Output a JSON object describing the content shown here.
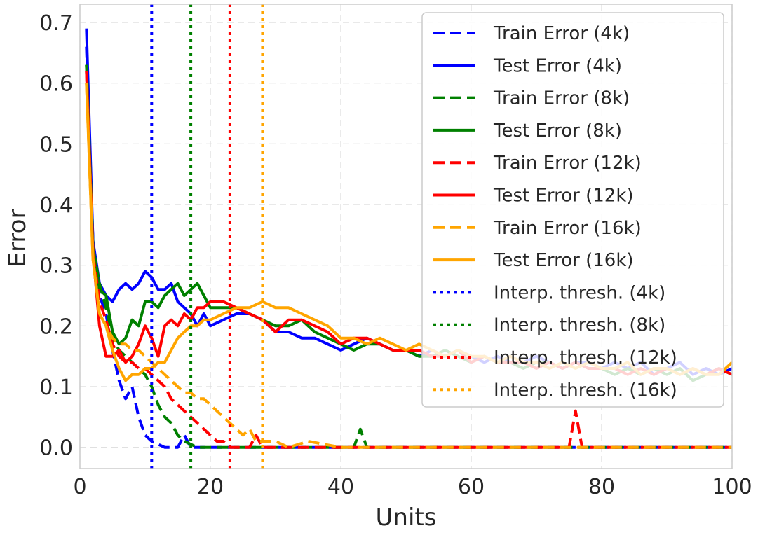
{
  "chart_data": {
    "type": "line",
    "xlabel": "Units",
    "ylabel": "Error",
    "xlim": [
      0,
      100
    ],
    "ylim": [
      -0.035,
      0.73
    ],
    "xticks": [
      "0",
      "20",
      "40",
      "60",
      "80",
      "100"
    ],
    "yticks": [
      "0.0",
      "0.1",
      "0.2",
      "0.3",
      "0.4",
      "0.5",
      "0.6",
      "0.7"
    ],
    "grid": true,
    "legend_position": "upper-right",
    "colors": {
      "4k": "#0000ff",
      "8k": "#008000",
      "12k": "#ff0000",
      "16k": "#ffa500"
    },
    "series": [
      {
        "name": "Train Error (4k)",
        "color": "#0000ff",
        "style": "dashed",
        "x": [
          1,
          2,
          3,
          4,
          5,
          6,
          7,
          8,
          9,
          10,
          11,
          12,
          13,
          14,
          15,
          16,
          17,
          18,
          19,
          20,
          25,
          30,
          40,
          50,
          60,
          70,
          80,
          90,
          100
        ],
        "y": [
          0.66,
          0.34,
          0.25,
          0.22,
          0.16,
          0.11,
          0.08,
          0.1,
          0.05,
          0.02,
          0.01,
          0.005,
          0.0,
          0.0,
          0.0,
          0.02,
          0.0,
          0.0,
          0.0,
          0.0,
          0.0,
          0.0,
          0.0,
          0.0,
          0.0,
          0.0,
          0.0,
          0.0,
          0.0
        ]
      },
      {
        "name": "Test Error (4k)",
        "color": "#0000ff",
        "style": "solid",
        "x": [
          1,
          2,
          3,
          4,
          5,
          6,
          7,
          8,
          9,
          10,
          11,
          12,
          13,
          14,
          15,
          16,
          17,
          18,
          19,
          20,
          22,
          24,
          26,
          28,
          30,
          32,
          34,
          36,
          38,
          40,
          42,
          44,
          46,
          48,
          50,
          52,
          54,
          56,
          58,
          60,
          62,
          64,
          66,
          68,
          70,
          72,
          74,
          76,
          78,
          80,
          82,
          84,
          86,
          88,
          90,
          92,
          94,
          96,
          98,
          100
        ],
        "y": [
          0.69,
          0.34,
          0.27,
          0.25,
          0.24,
          0.26,
          0.27,
          0.26,
          0.27,
          0.29,
          0.28,
          0.26,
          0.26,
          0.27,
          0.24,
          0.23,
          0.22,
          0.2,
          0.22,
          0.2,
          0.21,
          0.22,
          0.22,
          0.21,
          0.19,
          0.19,
          0.18,
          0.18,
          0.17,
          0.16,
          0.17,
          0.18,
          0.17,
          0.16,
          0.16,
          0.15,
          0.16,
          0.15,
          0.16,
          0.15,
          0.14,
          0.15,
          0.14,
          0.14,
          0.15,
          0.14,
          0.13,
          0.14,
          0.14,
          0.13,
          0.14,
          0.13,
          0.14,
          0.12,
          0.13,
          0.14,
          0.12,
          0.13,
          0.12,
          0.13
        ]
      },
      {
        "name": "Train Error (8k)",
        "color": "#008000",
        "style": "dashed",
        "x": [
          1,
          2,
          3,
          4,
          5,
          6,
          7,
          8,
          9,
          10,
          11,
          12,
          13,
          14,
          15,
          16,
          17,
          18,
          20,
          25,
          30,
          40,
          42,
          43,
          44,
          50,
          60,
          70,
          80,
          90,
          100
        ],
        "y": [
          0.63,
          0.33,
          0.27,
          0.23,
          0.18,
          0.16,
          0.15,
          0.14,
          0.13,
          0.12,
          0.1,
          0.07,
          0.05,
          0.04,
          0.02,
          0.01,
          0.005,
          0.0,
          0.0,
          0.0,
          0.0,
          0.0,
          0.0,
          0.03,
          0.0,
          0.0,
          0.0,
          0.0,
          0.0,
          0.0,
          0.0
        ]
      },
      {
        "name": "Test Error (8k)",
        "color": "#008000",
        "style": "solid",
        "x": [
          1,
          2,
          3,
          4,
          5,
          6,
          7,
          8,
          9,
          10,
          11,
          12,
          13,
          14,
          15,
          16,
          17,
          18,
          19,
          20,
          22,
          24,
          26,
          28,
          30,
          32,
          34,
          36,
          38,
          40,
          42,
          44,
          46,
          48,
          50,
          52,
          54,
          56,
          58,
          60,
          62,
          64,
          66,
          68,
          70,
          72,
          74,
          76,
          78,
          80,
          82,
          84,
          86,
          88,
          90,
          92,
          94,
          96,
          98,
          100
        ],
        "y": [
          0.63,
          0.33,
          0.26,
          0.25,
          0.19,
          0.17,
          0.18,
          0.21,
          0.2,
          0.24,
          0.24,
          0.23,
          0.25,
          0.26,
          0.27,
          0.25,
          0.26,
          0.27,
          0.25,
          0.23,
          0.23,
          0.23,
          0.22,
          0.21,
          0.2,
          0.2,
          0.21,
          0.19,
          0.18,
          0.17,
          0.16,
          0.17,
          0.17,
          0.16,
          0.16,
          0.15,
          0.15,
          0.16,
          0.15,
          0.14,
          0.15,
          0.14,
          0.14,
          0.13,
          0.14,
          0.14,
          0.13,
          0.14,
          0.13,
          0.13,
          0.12,
          0.13,
          0.12,
          0.13,
          0.12,
          0.13,
          0.11,
          0.12,
          0.13,
          0.12
        ]
      },
      {
        "name": "Train Error (12k)",
        "color": "#ff0000",
        "style": "dashed",
        "x": [
          1,
          2,
          3,
          4,
          5,
          6,
          7,
          8,
          9,
          10,
          11,
          12,
          13,
          14,
          15,
          16,
          17,
          18,
          19,
          20,
          21,
          22,
          23,
          24,
          25,
          26,
          27,
          28,
          30,
          40,
          50,
          60,
          70,
          75,
          76,
          77,
          80,
          90,
          100
        ],
        "y": [
          0.62,
          0.32,
          0.24,
          0.21,
          0.17,
          0.15,
          0.14,
          0.14,
          0.13,
          0.13,
          0.12,
          0.11,
          0.1,
          0.08,
          0.07,
          0.06,
          0.05,
          0.04,
          0.03,
          0.02,
          0.01,
          0.01,
          0.0,
          0.0,
          0.0,
          0.0,
          0.02,
          0.0,
          0.0,
          0.0,
          0.0,
          0.0,
          0.0,
          0.0,
          0.06,
          0.0,
          0.0,
          0.0,
          0.0
        ]
      },
      {
        "name": "Test Error (12k)",
        "color": "#ff0000",
        "style": "solid",
        "x": [
          1,
          2,
          3,
          4,
          5,
          6,
          7,
          8,
          9,
          10,
          11,
          12,
          13,
          14,
          15,
          16,
          17,
          18,
          19,
          20,
          22,
          24,
          26,
          28,
          30,
          32,
          34,
          36,
          38,
          40,
          42,
          44,
          46,
          48,
          50,
          52,
          54,
          56,
          58,
          60,
          62,
          64,
          66,
          68,
          70,
          72,
          74,
          76,
          78,
          80,
          82,
          84,
          86,
          88,
          90,
          92,
          94,
          96,
          98,
          100
        ],
        "y": [
          0.62,
          0.32,
          0.2,
          0.15,
          0.15,
          0.16,
          0.14,
          0.15,
          0.17,
          0.2,
          0.18,
          0.15,
          0.2,
          0.21,
          0.2,
          0.22,
          0.21,
          0.23,
          0.23,
          0.24,
          0.24,
          0.23,
          0.22,
          0.21,
          0.19,
          0.21,
          0.21,
          0.2,
          0.19,
          0.17,
          0.18,
          0.18,
          0.17,
          0.16,
          0.16,
          0.16,
          0.15,
          0.15,
          0.16,
          0.14,
          0.15,
          0.14,
          0.14,
          0.14,
          0.13,
          0.14,
          0.13,
          0.14,
          0.13,
          0.13,
          0.13,
          0.12,
          0.13,
          0.12,
          0.13,
          0.12,
          0.13,
          0.12,
          0.13,
          0.12
        ]
      },
      {
        "name": "Train Error (16k)",
        "color": "#ffa500",
        "style": "dashed",
        "x": [
          1,
          2,
          3,
          4,
          5,
          6,
          7,
          8,
          9,
          10,
          11,
          12,
          13,
          14,
          15,
          16,
          17,
          18,
          19,
          20,
          21,
          22,
          23,
          24,
          25,
          26,
          27,
          28,
          29,
          30,
          32,
          35,
          40,
          50,
          60,
          70,
          80,
          90,
          100
        ],
        "y": [
          0.6,
          0.31,
          0.22,
          0.2,
          0.18,
          0.17,
          0.17,
          0.16,
          0.16,
          0.15,
          0.14,
          0.13,
          0.12,
          0.11,
          0.1,
          0.09,
          0.09,
          0.08,
          0.08,
          0.07,
          0.06,
          0.05,
          0.04,
          0.03,
          0.02,
          0.03,
          0.01,
          0.01,
          0.01,
          0.01,
          0.0,
          0.01,
          0.0,
          0.0,
          0.0,
          0.0,
          0.0,
          0.0,
          0.0
        ]
      },
      {
        "name": "Test Error (16k)",
        "color": "#ffa500",
        "style": "solid",
        "x": [
          1,
          2,
          3,
          4,
          5,
          6,
          7,
          8,
          9,
          10,
          11,
          12,
          13,
          14,
          15,
          16,
          17,
          18,
          19,
          20,
          22,
          24,
          26,
          28,
          30,
          32,
          34,
          36,
          38,
          40,
          42,
          44,
          46,
          48,
          50,
          52,
          54,
          56,
          58,
          60,
          62,
          64,
          66,
          68,
          70,
          72,
          74,
          76,
          78,
          80,
          82,
          84,
          86,
          88,
          90,
          92,
          94,
          96,
          98,
          100
        ],
        "y": [
          0.6,
          0.31,
          0.22,
          0.2,
          0.16,
          0.13,
          0.11,
          0.12,
          0.12,
          0.13,
          0.13,
          0.14,
          0.14,
          0.16,
          0.18,
          0.19,
          0.2,
          0.2,
          0.21,
          0.21,
          0.22,
          0.23,
          0.23,
          0.24,
          0.23,
          0.23,
          0.22,
          0.21,
          0.2,
          0.18,
          0.18,
          0.17,
          0.18,
          0.17,
          0.16,
          0.17,
          0.16,
          0.15,
          0.16,
          0.15,
          0.15,
          0.14,
          0.15,
          0.14,
          0.14,
          0.13,
          0.14,
          0.13,
          0.14,
          0.13,
          0.13,
          0.14,
          0.12,
          0.13,
          0.13,
          0.12,
          0.13,
          0.12,
          0.12,
          0.14
        ]
      },
      {
        "name": "Interp. thresh. (4k)",
        "color": "#0000ff",
        "style": "dotted",
        "vline": 11
      },
      {
        "name": "Interp. thresh. (8k)",
        "color": "#008000",
        "style": "dotted",
        "vline": 17
      },
      {
        "name": "Interp. thresh. (12k)",
        "color": "#ff0000",
        "style": "dotted",
        "vline": 23
      },
      {
        "name": "Interp. thresh. (16k)",
        "color": "#ffa500",
        "style": "dotted",
        "vline": 28
      }
    ]
  }
}
